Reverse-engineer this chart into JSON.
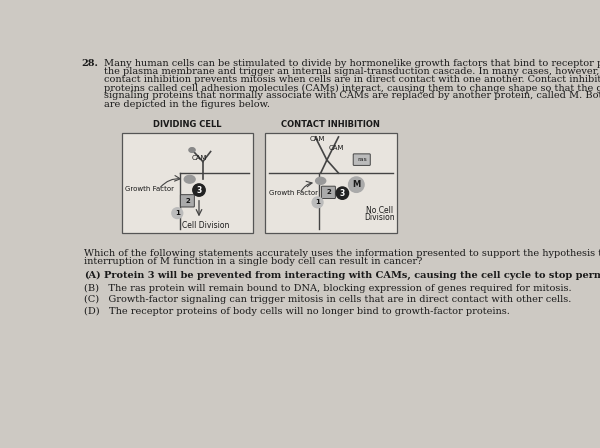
{
  "bg_color": "#cdc9c3",
  "text_color": "#1a1a1a",
  "question_number": "28.",
  "q_line1": "Many human cells can be stimulated to divide by hormonelike growth factors that bind to receptor proteins (R) on",
  "q_line2": "the plasma membrane and trigger an internal signal-transduction cascade. In many cases, however, the process of",
  "q_line3": "contact inhibition prevents mitosis when cells are in direct contact with one another. Contact inhibition occurs when",
  "q_line4": "proteins called cell adhesion molecules (CAMs) interact, causing them to change shape so that the growth-factor",
  "q_line5": "signaling proteins that normally associate with CAMs are replaced by another protein, called M. Both pathways",
  "q_line6": "are depicted in the figures below.",
  "diag_label_left": "DIVIDING CELL",
  "diag_label_right": "CONTACT INHIBITION",
  "stem_line1": "Which of the following statements accurately uses the information presented to support the hypothesis that",
  "stem_line2": "interruption of M function in a single body cell can result in cancer?",
  "choiceA_label": "(A)",
  "choiceA_text": "Protein 3 will be prevented from interacting with CAMs, causing the cell cycle to stop permanently.",
  "choiceB": "(B)   The ras protein will remain bound to DNA, blocking expression of genes required for mitosis.",
  "choiceC": "(C)   Growth-factor signaling can trigger mitosis in cells that are in direct contact with other cells.",
  "choiceD": "(D)   The receptor proteins of body cells will no longer bind to growth-factor proteins.",
  "box_edge_color": "#555555",
  "cell_line_color": "#444444",
  "dark_circle_color": "#222222",
  "gray_circle_color": "#999999",
  "label_box_color": "#aaaaaa"
}
